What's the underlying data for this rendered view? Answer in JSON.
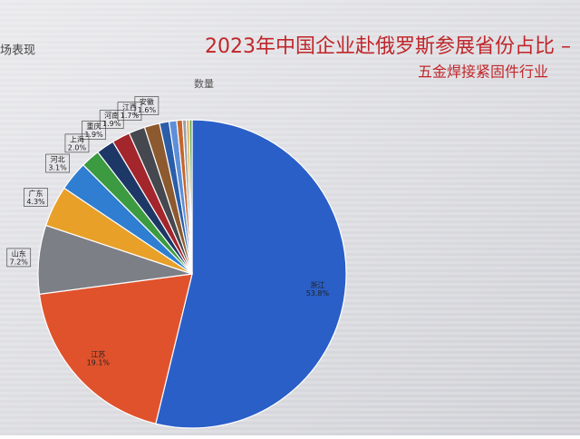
{
  "header": {
    "corner_text": "场表现"
  },
  "chart_data": {
    "type": "pie",
    "title": "2023年中国企业赴俄罗斯参展省份占比 –",
    "subtitle": "五金焊接紧固件行业",
    "series_name": "数量",
    "categories": [
      "浙江",
      "江苏",
      "山东",
      "广东",
      "河北",
      "上海",
      "重庆",
      "河南",
      "江西",
      "安徽",
      null,
      null,
      null,
      null,
      null,
      null
    ],
    "values": [
      53.8,
      19.1,
      7.2,
      4.3,
      3.1,
      2.0,
      1.9,
      1.9,
      1.7,
      1.6,
      1.0,
      0.8,
      0.6,
      0.4,
      0.3,
      0.3
    ],
    "value_labels": [
      "53.8%",
      "19.1%",
      "7.2%",
      "4.3%",
      "3.1%",
      "2.0%",
      "1.9%",
      "1.9%",
      "1.7%",
      "1.6%",
      null,
      null,
      null,
      null,
      null,
      null
    ],
    "colors": [
      "#2a5fc8",
      "#e0522c",
      "#7c7f86",
      "#e8a028",
      "#2f7ed2",
      "#3c9a40",
      "#1d3766",
      "#a3262c",
      "#45484e",
      "#8c5a2e",
      "#2b5ea8",
      "#5d8fd8",
      "#c6662e",
      "#9aa0a8",
      "#d8a84a",
      "#6aa84f"
    ]
  }
}
